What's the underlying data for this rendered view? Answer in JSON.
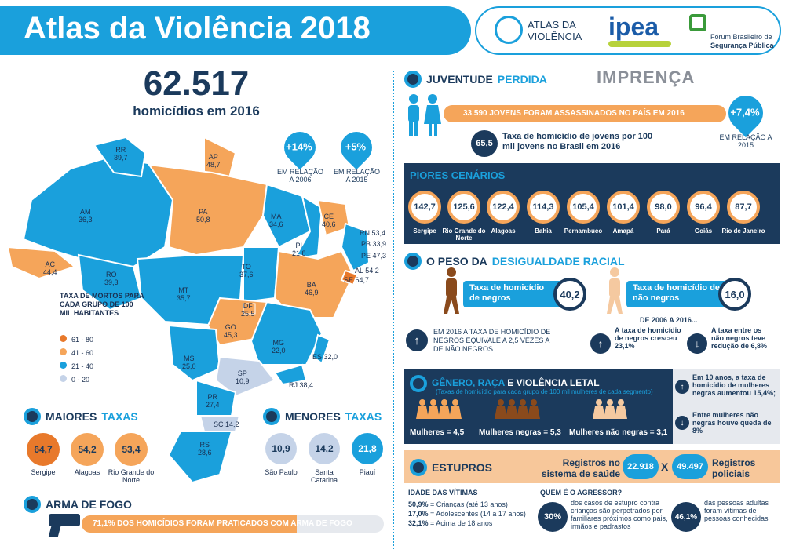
{
  "header": {
    "title": "Atlas da Violência 2018",
    "logo_atlas": "ATLAS DA VIOLÊNCIA",
    "logo_ipea": "ipea",
    "logo_forum_line1": "Fórum Brasileiro de",
    "logo_forum_line2": "Segurança Pública"
  },
  "headline": {
    "number": "62.517",
    "label": "homicídios em 2016",
    "change_2006": "+14%",
    "change_2006_label": "EM RELAÇÃO A 2006",
    "change_2015": "+5%",
    "change_2015_label": "EM RELAÇÃO A 2015"
  },
  "map": {
    "states": [
      {
        "uf": "RR",
        "value": "39,7"
      },
      {
        "uf": "AP",
        "value": "48,7"
      },
      {
        "uf": "AM",
        "value": "36,3"
      },
      {
        "uf": "PA",
        "value": "50,8"
      },
      {
        "uf": "MA",
        "value": "34,6"
      },
      {
        "uf": "CE",
        "value": "40,6"
      },
      {
        "uf": "RN",
        "value": "53,4"
      },
      {
        "uf": "PB",
        "value": "33,9"
      },
      {
        "uf": "PE",
        "value": "47,3"
      },
      {
        "uf": "AL",
        "value": "54,2"
      },
      {
        "uf": "SE",
        "value": "64,7"
      },
      {
        "uf": "PI",
        "value": "21,8"
      },
      {
        "uf": "AC",
        "value": "44,4"
      },
      {
        "uf": "RO",
        "value": "39,3"
      },
      {
        "uf": "TO",
        "value": "37,6"
      },
      {
        "uf": "BA",
        "value": "46,9"
      },
      {
        "uf": "MT",
        "value": "35,7"
      },
      {
        "uf": "DF",
        "value": "25,5"
      },
      {
        "uf": "GO",
        "value": "45,3"
      },
      {
        "uf": "MG",
        "value": "22,0"
      },
      {
        "uf": "ES",
        "value": "32,0"
      },
      {
        "uf": "MS",
        "value": "25,0"
      },
      {
        "uf": "SP",
        "value": "10,9"
      },
      {
        "uf": "RJ",
        "value": "38,4"
      },
      {
        "uf": "PR",
        "value": "27,4"
      },
      {
        "uf": "SC",
        "value": "14,2"
      },
      {
        "uf": "RS",
        "value": "28,6"
      }
    ],
    "legend_title": "TAXA DE MORTOS PARA CADA GRUPO DE 100 MIL HABITANTES",
    "legend": [
      {
        "label": "61 - 80",
        "color": "#e8792b"
      },
      {
        "label": "41 - 60",
        "color": "#f5a55a"
      },
      {
        "label": "21 - 40",
        "color": "#1aa0dc"
      },
      {
        "label": "0 - 20",
        "color": "#c5d3e8"
      }
    ]
  },
  "maiores": {
    "title_a": "MAIORES",
    "title_b": "TAXAS",
    "items": [
      {
        "value": "64,7",
        "name": "Sergipe"
      },
      {
        "value": "54,2",
        "name": "Alagoas"
      },
      {
        "value": "53,4",
        "name": "Rio Grande do Norte"
      }
    ]
  },
  "menores": {
    "title_a": "MENORES",
    "title_b": "TAXAS",
    "items": [
      {
        "value": "10,9",
        "name": "São Paulo"
      },
      {
        "value": "14,2",
        "name": "Santa Catarina"
      },
      {
        "value": "21,8",
        "name": "Piauí"
      }
    ]
  },
  "arma": {
    "title": "ARMA DE FOGO",
    "text": "71,1% DOS HOMICÍDIOS FORAM PRATICADOS COM ARMA DE FOGO",
    "fill": 0.711
  },
  "juventude": {
    "title_a": "JUVENTUDE",
    "title_b": "PERDIDA",
    "imprensa": "IMPRENÇA",
    "bar_text": "33.590 JOVENS FORAM ASSASSINADOS NO PAÍS EM 2016",
    "change": "+7,4%",
    "change_label": "EM RELAÇÃO A 2015",
    "rate": "65,5",
    "rate_text": "Taxa de homicídio de jovens por 100 mil jovens no Brasil em 2016"
  },
  "piores": {
    "title": "PIORES CENÁRIOS",
    "items": [
      {
        "value": "142,7",
        "name": "Sergipe"
      },
      {
        "value": "125,6",
        "name": "Rio Grande do Norte"
      },
      {
        "value": "122,4",
        "name": "Alagoas"
      },
      {
        "value": "114,3",
        "name": "Bahia"
      },
      {
        "value": "105,4",
        "name": "Pernambuco"
      },
      {
        "value": "101,4",
        "name": "Amapá"
      },
      {
        "value": "98,0",
        "name": "Pará"
      },
      {
        "value": "96,4",
        "name": "Goiás"
      },
      {
        "value": "87,7",
        "name": "Rio de Janeiro"
      }
    ]
  },
  "racial": {
    "title_a": "O PESO DA",
    "title_b": "DESIGUALDADE RACIAL",
    "negros_label": "Taxa de homicídio de negros",
    "negros_value": "40,2",
    "nao_negros_label": "Taxa de homicídio de não negros",
    "nao_negros_value": "16,0",
    "period": "DE 2006 A 2016...",
    "equiv_text": "EM 2016 A TAXA DE HOMICÍDIO DE NEGROS EQUIVALE A 2,5 VEZES A DE NÃO NEGROS",
    "up_text": "A taxa de homicídio de negros cresceu 23,1%",
    "down_text": "A taxa entre os não negros teve redução de 6,8%"
  },
  "genero": {
    "title_a": "GÊNERO, RAÇA",
    "title_b": "E VIOLÊNCIA LETAL",
    "subtitle": "(Taxas de homicídio para cada grupo de 100 mil mulheres de cada segmento)",
    "groups": [
      {
        "label": "Mulheres = 4,5"
      },
      {
        "label": "Mulheres negras = 5,3"
      },
      {
        "label": "Mulheres não negras = 3,1"
      }
    ],
    "up_text": "Em 10 anos, a taxa de homicídio de mulheres negras aumentou 15,4%;",
    "down_text": "Entre mulheres não negras houve queda de 8%"
  },
  "estupros": {
    "title": "ESTUPROS",
    "reg_saude_label": "Registros no sistema de saúde",
    "reg_saude_value": "22.918",
    "times": "X",
    "reg_policia_value": "49.497",
    "reg_policia_label": "Registros policiais",
    "idade_title": "IDADE DAS VÍTIMAS",
    "idades": [
      {
        "pct": "50,9%",
        "text": "= Crianças (até 13 anos)"
      },
      {
        "pct": "17,0%",
        "text": "= Adolescentes (14 a 17 anos)"
      },
      {
        "pct": "32,1%",
        "text": "= Acima de 18 anos"
      }
    ],
    "agressor_title": "QUEM É O AGRESSOR?",
    "pct_30": "30%",
    "text_30": "dos casos de estupro contra crianças são perpetrados por familiares próximos como pais, irmãos e padrastos",
    "pct_46": "46,1%",
    "text_46": "das pessoas adultas foram vítimas de pessoas conhecidas"
  },
  "colors": {
    "blue": "#1aa0dc",
    "navy": "#1b3a5c",
    "orange": "#f5a55a",
    "dark_orange": "#e8792b",
    "light": "#c5d3e8",
    "peach": "#f7c79a"
  }
}
